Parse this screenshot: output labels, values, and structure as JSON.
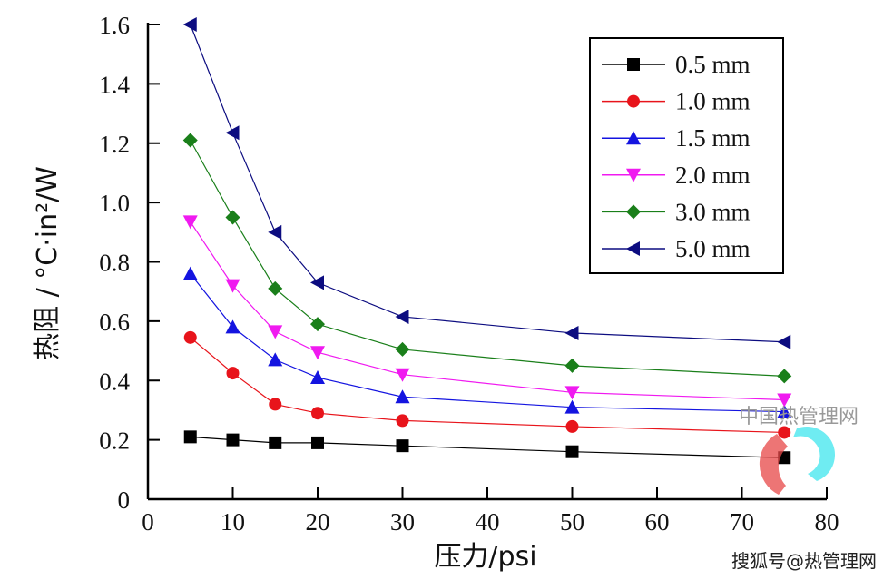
{
  "chart_data": {
    "type": "line",
    "xlabel": "压力/psi",
    "ylabel": "热阻 / °C·in²/W",
    "xlim": [
      0,
      80
    ],
    "ylim": [
      0,
      1.6
    ],
    "xticks": [
      "0",
      "10",
      "20",
      "30",
      "40",
      "50",
      "60",
      "70",
      "80"
    ],
    "yticks": [
      "0",
      "0.2",
      "0.4",
      "0.6",
      "0.8",
      "1.0",
      "1.2",
      "1.4",
      "1.6"
    ],
    "grid": false,
    "legend_position": "top-right",
    "x": [
      5,
      10,
      15,
      20,
      30,
      50,
      75
    ],
    "series": [
      {
        "name": "0.5 mm",
        "color": "#000000",
        "marker": "square",
        "values": [
          0.21,
          0.2,
          0.19,
          0.19,
          0.18,
          0.16,
          0.14
        ]
      },
      {
        "name": "1.0 mm",
        "color": "#e8141b",
        "marker": "circle",
        "values": [
          0.545,
          0.425,
          0.32,
          0.29,
          0.265,
          0.245,
          0.225
        ]
      },
      {
        "name": "1.5 mm",
        "color": "#1414e0",
        "marker": "triangle-up",
        "values": [
          0.76,
          0.58,
          0.47,
          0.41,
          0.345,
          0.31,
          0.295
        ]
      },
      {
        "name": "2.0 mm",
        "color": "#f01af0",
        "marker": "triangle-down",
        "values": [
          0.935,
          0.72,
          0.565,
          0.495,
          0.42,
          0.36,
          0.335
        ]
      },
      {
        "name": "3.0 mm",
        "color": "#1a7f1a",
        "marker": "diamond",
        "values": [
          1.21,
          0.95,
          0.71,
          0.59,
          0.505,
          0.45,
          0.415
        ]
      },
      {
        "name": "5.0 mm",
        "color": "#0c0c80",
        "marker": "triangle-left",
        "values": [
          1.6,
          1.235,
          0.9,
          0.73,
          0.615,
          0.56,
          0.53
        ]
      }
    ]
  },
  "watermark": {
    "logo_text": "中国热管理网",
    "credit": "搜狐号@热管理网"
  }
}
